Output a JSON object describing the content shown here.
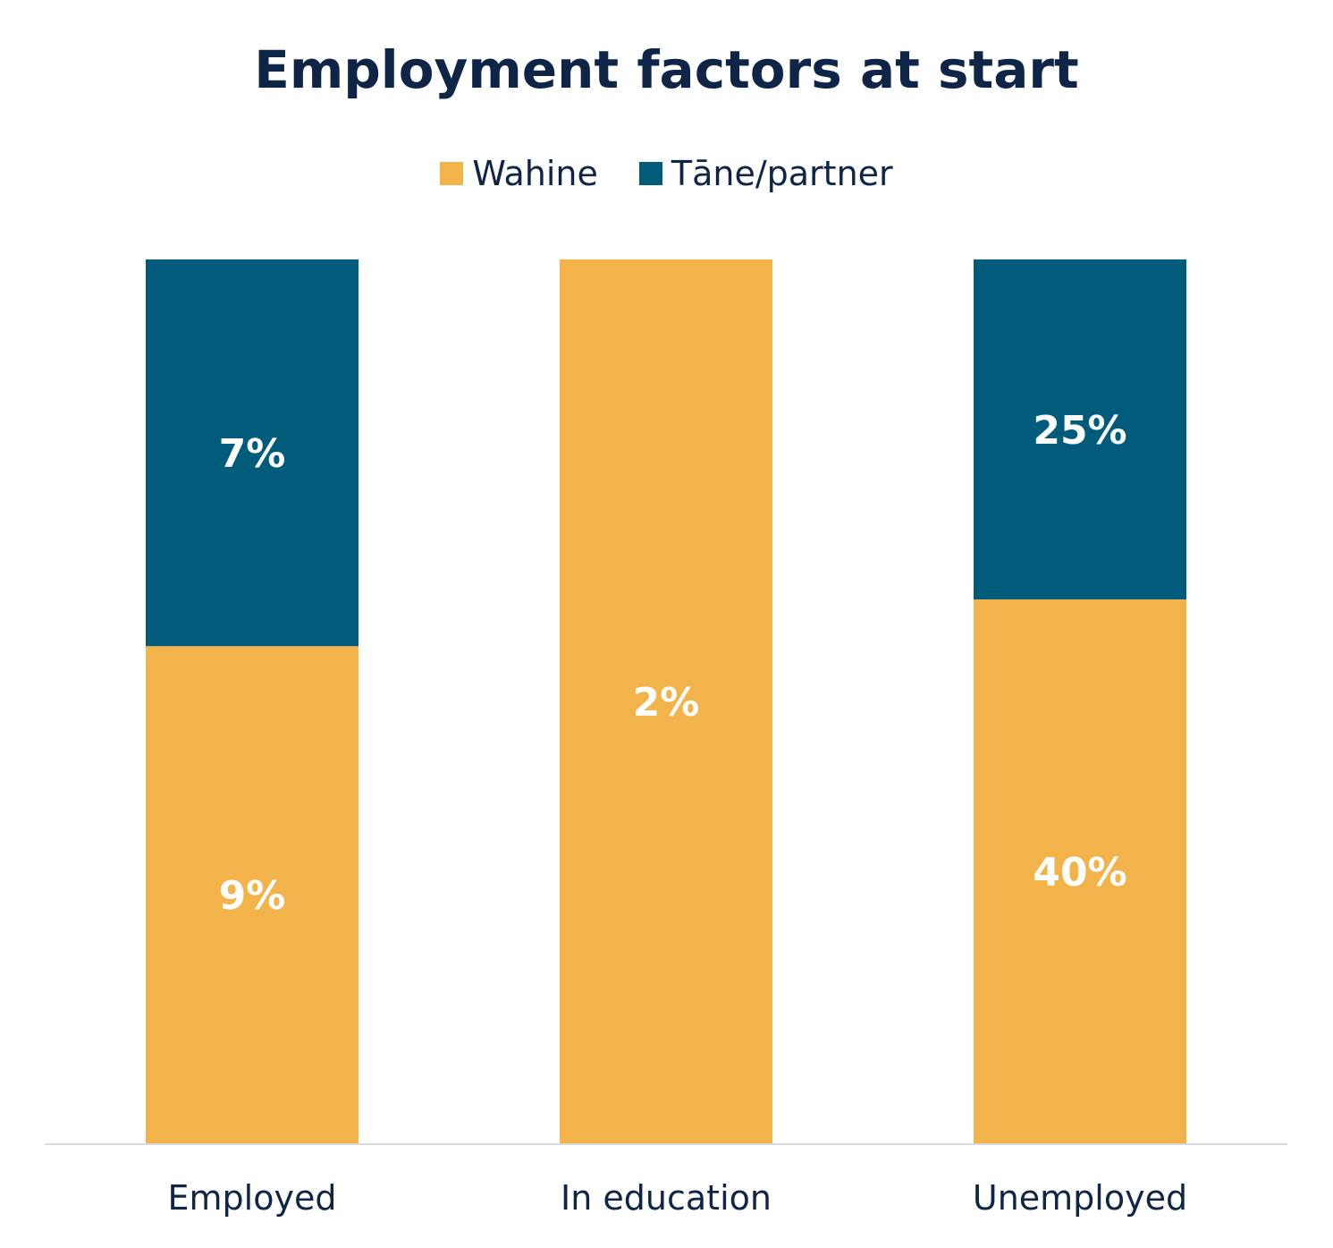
{
  "chart_data": {
    "type": "bar",
    "stacked": true,
    "normalized": true,
    "title": "Employment factors at start",
    "categories": [
      "Employed",
      "In education",
      "Unemployed"
    ],
    "series": [
      {
        "name": "Wahine",
        "color": "#f2b34a",
        "values": [
          9,
          2,
          40
        ],
        "labels": [
          "9%",
          "2%",
          "40%"
        ]
      },
      {
        "name": "Tāne/partner",
        "color": "#005c7a",
        "values": [
          7,
          0,
          25
        ],
        "labels": [
          "7%",
          "",
          "25%"
        ]
      }
    ],
    "legend": "top-center",
    "grid": false,
    "label_color": "#ffffff",
    "axis_color": "#d9d9d9",
    "text_color": "#0f2547"
  }
}
